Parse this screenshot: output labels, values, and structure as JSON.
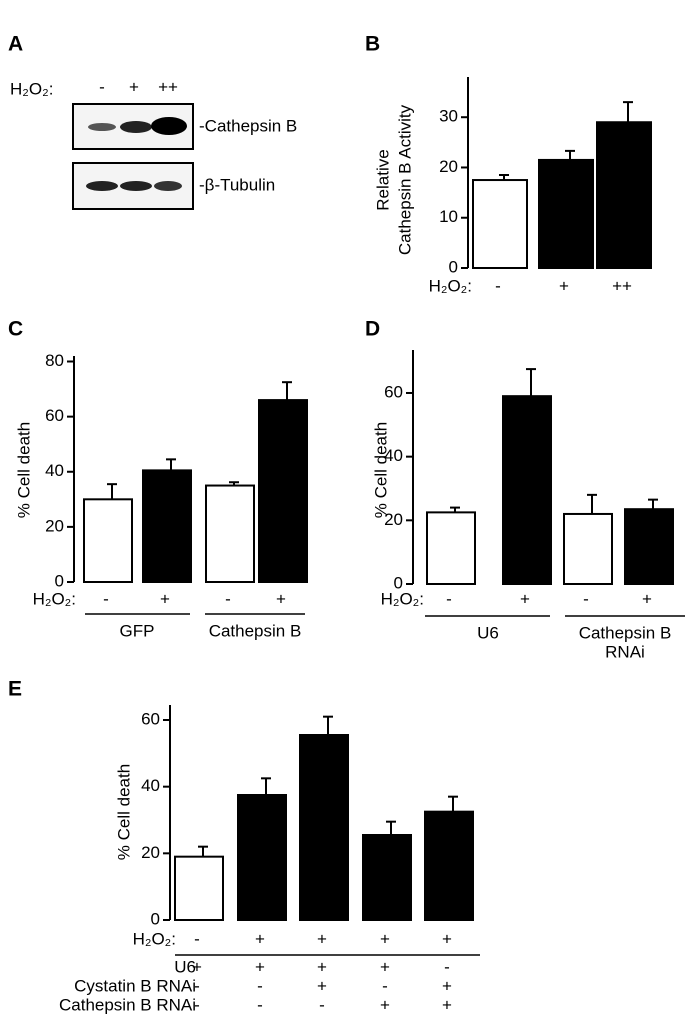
{
  "blot": {
    "label": "A",
    "treatment": "H₂O₂:",
    "lanes": [
      "-",
      "+",
      "++"
    ],
    "bands": [
      "-Cathepsin B",
      "-β-Tubulin"
    ]
  },
  "chart_data": [
    {
      "type": "bar",
      "panel": "B",
      "ylabel": [
        "Relative",
        "Cathepsin B Activity"
      ],
      "rows": [
        {
          "label": "H₂O₂:",
          "values": [
            "-",
            "+",
            "++"
          ]
        }
      ],
      "values": [
        17.5,
        21.5,
        29
      ],
      "errors": [
        1,
        1.8,
        4
      ],
      "colors": [
        "#ffffff",
        "#000000",
        "#000000"
      ],
      "ylim": [
        0,
        38
      ],
      "yticks": [
        0,
        10,
        20,
        30
      ]
    },
    {
      "type": "bar",
      "panel": "C",
      "ylabel": [
        "% Cell death"
      ],
      "rows": [
        {
          "label": "H₂O₂:",
          "values": [
            "-",
            "+",
            "-",
            "+"
          ]
        }
      ],
      "groups": [
        [
          "GFP"
        ],
        [
          "Cathepsin B"
        ]
      ],
      "values": [
        30,
        40.5,
        35,
        66
      ],
      "errors": [
        5.5,
        4,
        1.2,
        6.5
      ],
      "colors": [
        "#ffffff",
        "#000000",
        "#ffffff",
        "#000000"
      ],
      "ylim": [
        0,
        82
      ],
      "yticks": [
        0,
        20,
        40,
        60,
        80
      ]
    },
    {
      "type": "bar",
      "panel": "D",
      "ylabel": [
        "% Cell death"
      ],
      "rows": [
        {
          "label": "H₂O₂:",
          "values": [
            "-",
            "+",
            "-",
            "+"
          ]
        }
      ],
      "groups": [
        [
          "U6"
        ],
        [
          "Cathepsin B",
          "RNAi"
        ]
      ],
      "values": [
        22.5,
        59,
        22,
        23.5
      ],
      "errors": [
        1.5,
        8.5,
        6,
        3
      ],
      "colors": [
        "#ffffff",
        "#000000",
        "#ffffff",
        "#000000"
      ],
      "ylim": [
        0,
        73.5
      ],
      "yticks": [
        0,
        20,
        40,
        60
      ]
    },
    {
      "type": "bar",
      "panel": "E",
      "ylabel": [
        "% Cell death"
      ],
      "rows": [
        {
          "label": "H₂O₂:",
          "values": [
            "-",
            "+",
            "+",
            "+",
            "+"
          ]
        },
        {
          "label": "U6",
          "values": [
            "+",
            "+",
            "+",
            "+",
            "-"
          ]
        },
        {
          "label": "Cystatin B RNAi",
          "values": [
            "-",
            "-",
            "+",
            "-",
            "+"
          ]
        },
        {
          "label": "Cathepsin B RNAi",
          "values": [
            "-",
            "-",
            "-",
            "+",
            "+"
          ]
        }
      ],
      "values": [
        19,
        37.5,
        55.5,
        25.5,
        32.5
      ],
      "errors": [
        3,
        5,
        5.5,
        4,
        4.5
      ],
      "colors": [
        "#ffffff",
        "#000000",
        "#000000",
        "#000000",
        "#000000"
      ],
      "ylim": [
        0,
        64.5
      ],
      "yticks": [
        0,
        20,
        40,
        60
      ]
    }
  ]
}
